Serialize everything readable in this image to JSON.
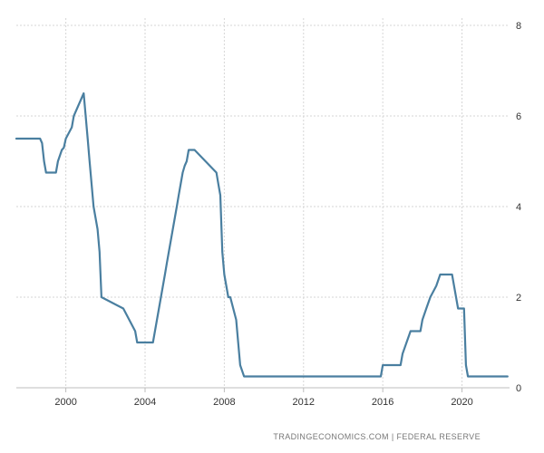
{
  "chart_data": {
    "type": "line",
    "title": "",
    "xlabel": "",
    "ylabel": "",
    "xlim": [
      1997.5,
      2022.4
    ],
    "ylim": [
      0,
      8
    ],
    "x_ticks": [
      2000,
      2004,
      2008,
      2012,
      2016,
      2020
    ],
    "x_tick_labels": [
      "2000",
      "2004",
      "2008",
      "2012",
      "2016",
      "2020"
    ],
    "y_ticks": [
      0,
      2,
      4,
      6,
      8
    ],
    "y_tick_labels": [
      "0",
      "2",
      "4",
      "6",
      "8"
    ],
    "y_axis_side": "right",
    "grid": true,
    "line_color": "#4a7fa0",
    "source": "TRADINGECONOMICS.COM  |  FEDERAL RESERVE",
    "series": [
      {
        "x": [
          1997.5,
          1998.7,
          1998.8,
          1998.9,
          1999.0,
          1999.5,
          1999.6,
          1999.8,
          1999.9,
          2000.0,
          2000.3,
          2000.4,
          2000.9,
          2001.0,
          2001.1,
          2001.2,
          2001.3,
          2001.4,
          2001.5,
          2001.6,
          2001.7,
          2001.8,
          2002.9,
          2003.5,
          2003.6,
          2004.4,
          2004.5,
          2004.6,
          2004.7,
          2004.8,
          2004.9,
          2005.0,
          2005.1,
          2005.2,
          2005.3,
          2005.4,
          2005.5,
          2005.6,
          2005.7,
          2005.8,
          2005.9,
          2006.0,
          2006.1,
          2006.2,
          2006.3,
          2006.5,
          2007.6,
          2007.7,
          2007.8,
          2007.9,
          2008.0,
          2008.1,
          2008.2,
          2008.3,
          2008.6,
          2008.7,
          2008.8,
          2009.0,
          2015.9,
          2016.0,
          2016.9,
          2017.0,
          2017.2,
          2017.4,
          2017.9,
          2018.0,
          2018.2,
          2018.4,
          2018.7,
          2018.9,
          2019.5,
          2019.6,
          2019.7,
          2019.8,
          2020.1,
          2020.2,
          2020.3,
          2022.3
        ],
        "y": [
          5.5,
          5.5,
          5.4,
          5.0,
          4.75,
          4.75,
          5.0,
          5.25,
          5.3,
          5.5,
          5.75,
          6.0,
          6.5,
          6.0,
          5.5,
          5.0,
          4.5,
          4.0,
          3.75,
          3.5,
          3.0,
          2.0,
          1.75,
          1.25,
          1.0,
          1.0,
          1.25,
          1.5,
          1.75,
          2.0,
          2.25,
          2.5,
          2.75,
          3.0,
          3.25,
          3.5,
          3.75,
          4.0,
          4.25,
          4.5,
          4.75,
          4.9,
          5.0,
          5.25,
          5.25,
          5.25,
          4.75,
          4.5,
          4.25,
          3.0,
          2.5,
          2.25,
          2.0,
          2.0,
          1.5,
          1.0,
          0.5,
          0.25,
          0.25,
          0.5,
          0.5,
          0.75,
          1.0,
          1.25,
          1.25,
          1.5,
          1.75,
          2.0,
          2.25,
          2.5,
          2.5,
          2.25,
          2.0,
          1.75,
          1.75,
          0.5,
          0.25,
          0.25
        ]
      }
    ]
  }
}
